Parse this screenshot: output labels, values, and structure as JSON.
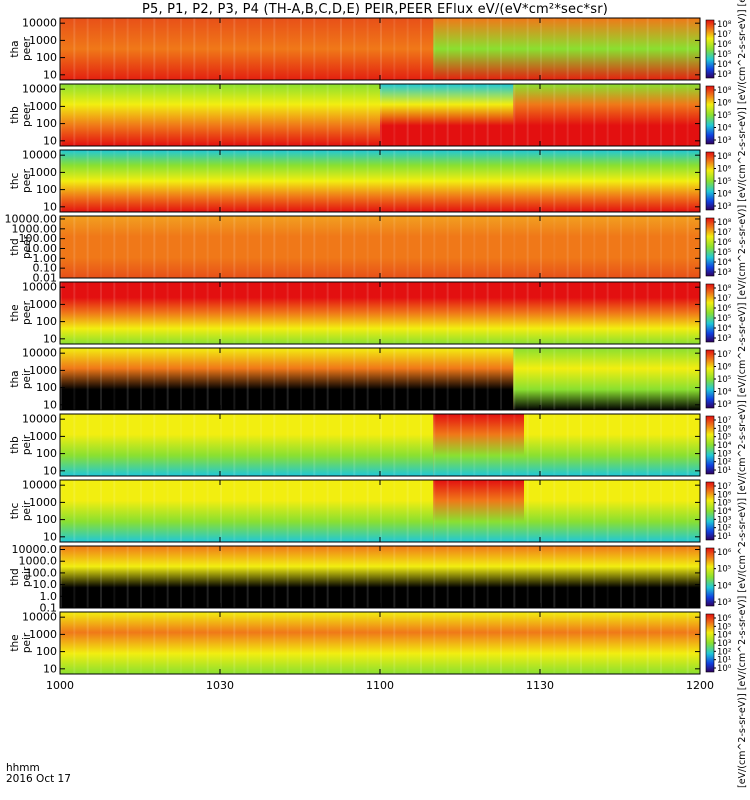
{
  "title": "P5, P1, P2, P3, P4 (TH-A,B,C,D,E) PEIR,PEER EFlux eV/(eV*cm²*sec*sr)",
  "time_footer": {
    "line1": "hhmm",
    "line2": "2016 Oct 17"
  },
  "units_label": "[eV/(cm^2-s-sr-eV)] [eV/(cm^2-s-sr-eV)] [eV/(cm^2-s-sr-eV)] [eV/(cm^2-s-sr-eV)] [eV/(cm^2-s-sr-eV)] [eV/(cm^2-s-sr-eV)] [eV/(cm^2-s-sr-eV)] [eV/(cm^2-s-sr-eV)] [eV/(cm^2-s-sr-eV)] [eV/(cm^2-s-sr-eV)]",
  "colors": {
    "red": "#e31010",
    "orange": "#f07818",
    "yellow": "#f2ee10",
    "green": "#8ae030",
    "cyan": "#20c8d8",
    "blue": "#1040e0",
    "black": "#000000"
  },
  "chart_data": {
    "type": "heatmap",
    "x_range": [
      "1000",
      "1200"
    ],
    "x_ticks": [
      "1000",
      "1030",
      "1100",
      "1130",
      "1200"
    ],
    "x_tick_minutes": [
      0,
      30,
      60,
      90,
      120
    ],
    "panels": [
      {
        "name": "peer-tha",
        "label1": "tha",
        "label2": "peer",
        "ylim": [
          5,
          20000
        ],
        "yticks": [
          "10000",
          "1000",
          "100",
          "10"
        ],
        "ytick_values": [
          10000,
          1000,
          100,
          10
        ],
        "cb_ticks": [
          "10⁸",
          "10⁷",
          "10⁶",
          "10⁵",
          "10⁴",
          "10³"
        ],
        "bands": [
          {
            "from": 0,
            "to": 70,
            "colors": [
              "#e85018",
              "#f07818",
              "#e32010"
            ]
          },
          {
            "from": 70,
            "to": 120,
            "colors": [
              "#f07818",
              "#8ae030",
              "#e32010"
            ]
          }
        ]
      },
      {
        "name": "peer-thb",
        "label1": "thb",
        "label2": "peer",
        "ylim": [
          5,
          20000
        ],
        "yticks": [
          "10000",
          "1000",
          "100",
          "10"
        ],
        "ytick_values": [
          10000,
          1000,
          100,
          10
        ],
        "cb_ticks": [
          "10⁸",
          "10⁶",
          "10⁵",
          "10⁴",
          "10³"
        ],
        "bands": [
          {
            "from": 0,
            "to": 60,
            "colors": [
              "#8ae030",
              "#f2ee10",
              "#f07818",
              "#e31010"
            ]
          },
          {
            "from": 60,
            "to": 85,
            "colors": [
              "#20c8d8",
              "#f2ee10",
              "#e31010",
              "#e31010"
            ]
          },
          {
            "from": 85,
            "to": 120,
            "colors": [
              "#8ae030",
              "#f07818",
              "#e31010",
              "#e31010"
            ]
          }
        ]
      },
      {
        "name": "peer-thc",
        "label1": "thc",
        "label2": "peer",
        "ylim": [
          5,
          20000
        ],
        "yticks": [
          "10000",
          "1000",
          "100",
          "10"
        ],
        "ytick_values": [
          10000,
          1000,
          100,
          10
        ],
        "cb_ticks": [
          "10⁸",
          "10⁶",
          "10⁵",
          "10⁴",
          "10³"
        ],
        "bands": [
          {
            "from": 0,
            "to": 120,
            "colors": [
              "#20c8d8",
              "#8ae030",
              "#f2ee10",
              "#f07818",
              "#e31010"
            ]
          }
        ]
      },
      {
        "name": "peer-thd",
        "label1": "thd",
        "label2": "peer",
        "ylim": [
          0.01,
          20000
        ],
        "yticks": [
          "10000.00",
          "1000.00",
          "100.00",
          "10.00",
          "1.00",
          "0.10",
          "0.01"
        ],
        "ytick_values": [
          10000,
          1000,
          100,
          10,
          1,
          0.1,
          0.01
        ],
        "cb_ticks": [
          "10⁸",
          "10⁷",
          "10⁶",
          "10⁵",
          "10⁴",
          "10³"
        ],
        "bands": [
          {
            "from": 0,
            "to": 120,
            "colors": [
              "#f2a020",
              "#f07818",
              "#f07818",
              "#e85018"
            ]
          }
        ]
      },
      {
        "name": "peer-the",
        "label1": "the",
        "label2": "peer",
        "ylim": [
          5,
          20000
        ],
        "yticks": [
          "10000",
          "1000",
          "100",
          "10"
        ],
        "ytick_values": [
          10000,
          1000,
          100,
          10
        ],
        "cb_ticks": [
          "10⁸",
          "10⁷",
          "10⁶",
          "10⁵",
          "10⁴",
          "10³"
        ],
        "bands": [
          {
            "from": 0,
            "to": 120,
            "colors": [
              "#e31010",
              "#e31010",
              "#f07818",
              "#f2ee10",
              "#8ae030"
            ]
          }
        ]
      },
      {
        "name": "peir-tha",
        "label1": "tha",
        "label2": "peir",
        "ylim": [
          5,
          20000
        ],
        "yticks": [
          "10000",
          "1000",
          "100",
          "10"
        ],
        "ytick_values": [
          10000,
          1000,
          100,
          10
        ],
        "cb_ticks": [
          "10⁷",
          "10⁶",
          "10⁵",
          "10⁴",
          "10³"
        ],
        "bands": [
          {
            "from": 0,
            "to": 85,
            "colors": [
              "#f2ee10",
              "#f07818",
              "#000000",
              "#000000"
            ]
          },
          {
            "from": 85,
            "to": 120,
            "colors": [
              "#8ae030",
              "#f2ee10",
              "#8ae030",
              "#000000"
            ]
          }
        ]
      },
      {
        "name": "peir-thb",
        "label1": "thb",
        "label2": "peir",
        "ylim": [
          5,
          20000
        ],
        "yticks": [
          "10000",
          "1000",
          "100",
          "10"
        ],
        "ytick_values": [
          10000,
          1000,
          100,
          10
        ],
        "cb_ticks": [
          "10⁷",
          "10⁶",
          "10⁵",
          "10⁴",
          "10³",
          "10²",
          "10¹"
        ],
        "bands": [
          {
            "from": 0,
            "to": 70,
            "colors": [
              "#f2ee10",
              "#f2ee10",
              "#8ae030",
              "#20c8d8"
            ]
          },
          {
            "from": 70,
            "to": 87,
            "colors": [
              "#e31010",
              "#f07818",
              "#8ae030",
              "#20c8d8"
            ]
          },
          {
            "from": 87,
            "to": 120,
            "colors": [
              "#f2ee10",
              "#f2ee10",
              "#8ae030",
              "#20c8d8"
            ]
          }
        ]
      },
      {
        "name": "peir-thc",
        "label1": "thc",
        "label2": "peir",
        "ylim": [
          5,
          20000
        ],
        "yticks": [
          "10000",
          "1000",
          "100",
          "10"
        ],
        "ytick_values": [
          10000,
          1000,
          100,
          10
        ],
        "cb_ticks": [
          "10⁷",
          "10⁶",
          "10⁵",
          "10⁴",
          "10³",
          "10²",
          "10¹"
        ],
        "bands": [
          {
            "from": 0,
            "to": 70,
            "colors": [
              "#f2ee10",
              "#f2ee10",
              "#8ae030",
              "#20c8d8"
            ]
          },
          {
            "from": 70,
            "to": 87,
            "colors": [
              "#e31010",
              "#f07818",
              "#8ae030",
              "#20c8d8"
            ]
          },
          {
            "from": 87,
            "to": 120,
            "colors": [
              "#f2ee10",
              "#f2ee10",
              "#8ae030",
              "#20c8d8"
            ]
          }
        ]
      },
      {
        "name": "peir-thd",
        "label1": "thd",
        "label2": "peir",
        "ylim": [
          0.1,
          20000
        ],
        "yticks": [
          "10000.0",
          "1000.0",
          "100.0",
          "10.0",
          "1.0",
          "0.1"
        ],
        "ytick_values": [
          10000,
          1000,
          100,
          10,
          1,
          0.1
        ],
        "cb_ticks": [
          "10⁶",
          "10⁵",
          "10⁴",
          "10³"
        ],
        "bands": [
          {
            "from": 0,
            "to": 120,
            "colors": [
              "#f07818",
              "#f2ee10",
              "#000000",
              "#000000"
            ]
          }
        ]
      },
      {
        "name": "peir-the",
        "label1": "the",
        "label2": "peir",
        "ylim": [
          5,
          20000
        ],
        "yticks": [
          "10000",
          "1000",
          "100",
          "10"
        ],
        "ytick_values": [
          10000,
          1000,
          100,
          10
        ],
        "cb_ticks": [
          "10⁶",
          "10⁵",
          "10⁴",
          "10³",
          "10²",
          "10¹",
          "10⁰"
        ],
        "bands": [
          {
            "from": 0,
            "to": 120,
            "colors": [
              "#f2ee10",
              "#f07818",
              "#f2ee10",
              "#8ae030"
            ]
          }
        ]
      }
    ]
  }
}
